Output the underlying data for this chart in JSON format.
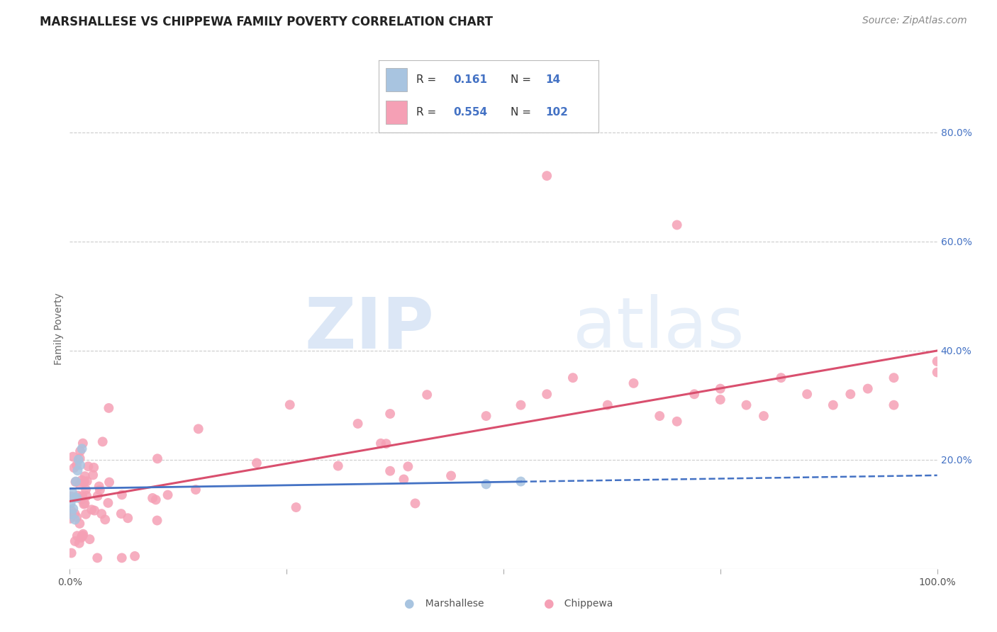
{
  "title": "MARSHALLESE VS CHIPPEWA FAMILY POVERTY CORRELATION CHART",
  "source": "Source: ZipAtlas.com",
  "ylabel": "Family Poverty",
  "xlim": [
    0.0,
    1.0
  ],
  "ylim": [
    0.0,
    0.88
  ],
  "ytick_positions": [
    0.2,
    0.4,
    0.6,
    0.8
  ],
  "ytick_labels": [
    "20.0%",
    "40.0%",
    "60.0%",
    "80.0%"
  ],
  "grid_color": "#cccccc",
  "background_color": "#ffffff",
  "watermark_zip": "ZIP",
  "watermark_atlas": "atlas",
  "marshallese_color": "#a8c4e0",
  "chippewa_color": "#f5a0b5",
  "marshallese_line_color": "#4472c4",
  "chippewa_line_color": "#d94f6e",
  "ytick_color": "#4472c4",
  "legend_r_marshallese": "0.161",
  "legend_n_marshallese": "14",
  "legend_r_chippewa": "0.554",
  "legend_n_chippewa": "102",
  "legend_text_color": "#333333",
  "legend_value_color": "#4472c4",
  "title_fontsize": 12,
  "axis_label_fontsize": 10,
  "tick_fontsize": 10,
  "source_fontsize": 10
}
